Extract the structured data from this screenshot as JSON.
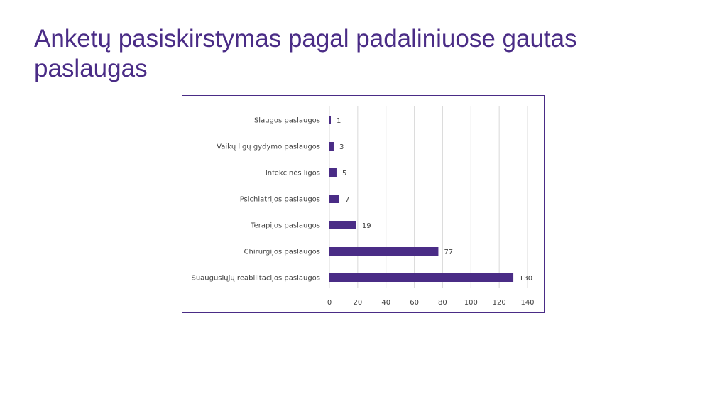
{
  "slide": {
    "title": "Anketų pasiskirstymas pagal padaliniuose gautas paslaugas"
  },
  "colors": {
    "title": "#4a2c86",
    "bar": "#4a2c86",
    "frame": "#4a2c86",
    "grid": "#d9d9d9"
  },
  "chart_data": {
    "type": "bar",
    "orientation": "horizontal",
    "categories": [
      "Slaugos paslaugos",
      "Vaikų ligų gydymo paslaugos",
      "Infekcinės ligos",
      "Psichiatrijos paslaugos",
      "Terapijos paslaugos",
      "Chirurgijos paslaugos",
      "Suaugusiųjų reabilitacijos paslaugos"
    ],
    "values": [
      1,
      3,
      5,
      7,
      19,
      77,
      130
    ],
    "data_labels": [
      "1",
      "3",
      "5",
      "7",
      "19",
      "77",
      "130"
    ],
    "x_ticks": [
      0,
      20,
      40,
      60,
      80,
      100,
      120,
      140
    ],
    "xlim": [
      0,
      140
    ],
    "grid": true,
    "legend": "none"
  }
}
